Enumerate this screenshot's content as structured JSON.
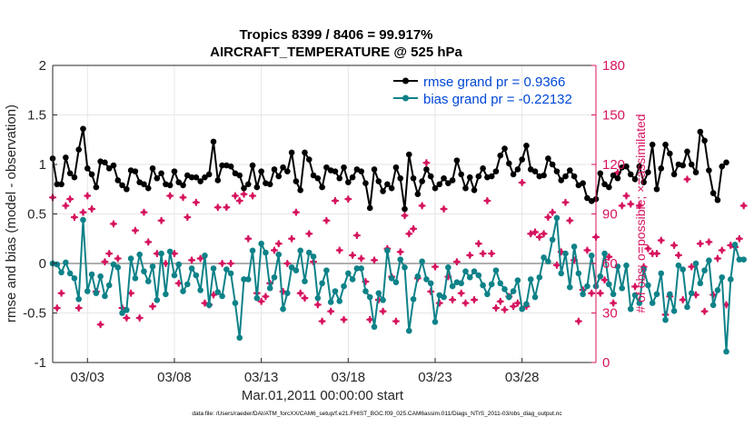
{
  "chart_data": {
    "type": "line",
    "title": "Tropics 8399 / 8406 = 99.917%",
    "subtitle": "AIRCRAFT_TEMPERATURE @ 525 hPa",
    "xlabel": "Mar.01,2011 00:00:00 start",
    "ylabel": "rmse and bias (model - observation)",
    "ylabel_right": "# of obs: o=possible; ×=assimilated",
    "footer": "data file: /Users/raeder/DAI/ATM_forcXX/CAM6_setup/f.e21.FHIST_BGC.f09_025.CAM6assim.011/Diags_NTrS_2011-03/obs_diag_output.nc",
    "xlim": [
      1.0,
      32.25
    ],
    "ylim": [
      -1,
      2
    ],
    "ylim_right": [
      0,
      180
    ],
    "x_ticks": [
      3,
      8,
      13,
      18,
      23,
      28
    ],
    "x_tick_labels": [
      "03/03",
      "03/08",
      "03/13",
      "03/18",
      "03/23",
      "03/28"
    ],
    "y_ticks": [
      -1,
      -0.5,
      0,
      0.5,
      1,
      1.5,
      2
    ],
    "y_tick_labels": [
      "-1",
      "-0.5",
      "0",
      "0.5",
      "1",
      "1.5",
      "2"
    ],
    "y_right_ticks": [
      0,
      30,
      60,
      90,
      120,
      150,
      180
    ],
    "y_right_tick_labels": [
      "0",
      "30",
      "60",
      "90",
      "120",
      "150",
      "180"
    ],
    "x_start": 1.0,
    "x_step": 0.25,
    "series": [
      {
        "name": "rmse grand pr = 0.9366",
        "color": "#000000",
        "axis": "left",
        "values": [
          1.06,
          0.8,
          0.8,
          1.07,
          0.91,
          0.87,
          1.15,
          1.36,
          0.96,
          0.9,
          0.77,
          1.03,
          1.02,
          0.96,
          0.99,
          0.84,
          0.79,
          0.75,
          0.94,
          0.93,
          0.82,
          0.8,
          0.76,
          0.96,
          0.86,
          0.91,
          0.8,
          0.79,
          0.93,
          0.82,
          0.79,
          0.89,
          0.87,
          0.87,
          0.83,
          0.87,
          0.9,
          1.23,
          0.84,
          0.99,
          0.99,
          0.98,
          0.91,
          0.89,
          0.76,
          0.8,
          0.99,
          0.77,
          0.93,
          0.81,
          0.8,
          0.95,
          0.88,
          0.97,
          0.93,
          1.12,
          0.83,
          0.74,
          1.12,
          1.05,
          0.89,
          0.86,
          0.77,
          0.97,
          0.94,
          0.93,
          0.86,
          0.97,
          0.82,
          0.87,
          0.95,
          0.93,
          0.81,
          0.56,
          0.95,
          0.83,
          0.73,
          0.8,
          0.76,
          0.97,
          0.86,
          0.55,
          1.1,
          0.86,
          0.7,
          0.83,
          0.95,
          0.88,
          0.76,
          0.8,
          0.86,
          0.81,
          0.84,
          1.04,
          0.9,
          0.76,
          0.87,
          0.74,
          0.88,
          0.96,
          0.87,
          0.88,
          0.93,
          1.09,
          1.16,
          1.01,
          0.9,
          0.95,
          1.05,
          1.19,
          0.95,
          0.93,
          0.88,
          0.89,
          1.06,
          1.0,
          0.93,
          0.84,
          0.88,
          0.94,
          0.88,
          0.79,
          0.81,
          0.66,
          0.63,
          0.65,
          0.91,
          0.8,
          0.77,
          0.89,
          0.86,
          0.97,
          0.98,
          0.9,
          0.85,
          0.98,
          0.82,
          0.92,
          1.2,
          0.75,
          0.96,
          1.2,
          1.11,
          0.9,
          1.0,
          0.99,
          1.13,
          1.0,
          0.92,
          1.33,
          1.24,
          0.94,
          0.71,
          0.64,
          0.98,
          1.02
        ]
      },
      {
        "name": "bias grand pr = -0.22132",
        "color": "#0e8288",
        "axis": "left",
        "values": [
          0.0,
          -0.01,
          -0.09,
          0.01,
          -0.1,
          -0.15,
          -0.36,
          0.44,
          -0.28,
          -0.11,
          -0.3,
          -0.13,
          -0.33,
          -0.22,
          -0.01,
          -0.04,
          -0.5,
          -0.47,
          0.05,
          -0.15,
          0.09,
          -0.08,
          -0.18,
          -0.03,
          -0.37,
          0.1,
          -0.31,
          0.12,
          -0.12,
          -0.01,
          -0.28,
          -0.21,
          -0.05,
          -0.12,
          -0.27,
          0.08,
          -0.42,
          -0.05,
          -0.29,
          -0.33,
          -0.06,
          -0.1,
          -0.4,
          -0.75,
          -0.16,
          -0.16,
          0.13,
          -0.35,
          0.2,
          0.11,
          -0.25,
          -0.14,
          0.09,
          -0.46,
          -0.3,
          -0.04,
          -0.07,
          0.13,
          -0.18,
          0.11,
          0.07,
          -0.35,
          -0.2,
          -0.07,
          -0.39,
          -0.28,
          -0.38,
          -0.23,
          -0.1,
          -0.16,
          -0.05,
          -0.05,
          -0.28,
          -0.34,
          -0.64,
          -0.3,
          -0.37,
          0.13,
          -0.15,
          -0.19,
          0.04,
          -0.04,
          -0.68,
          -0.36,
          -0.13,
          0.02,
          -0.16,
          -0.2,
          -0.59,
          -0.32,
          -0.34,
          -0.04,
          -0.23,
          -0.19,
          -0.2,
          -0.08,
          -0.14,
          -0.08,
          -0.12,
          -0.22,
          -0.31,
          -0.21,
          -0.07,
          -0.2,
          -0.26,
          -0.34,
          -0.28,
          -0.17,
          -0.46,
          -0.41,
          -0.16,
          -0.34,
          -0.14,
          0.06,
          0.02,
          0.24,
          0.46,
          -0.1,
          0.1,
          -0.24,
          0.17,
          -0.1,
          -0.31,
          -0.23,
          0.08,
          -0.23,
          -0.13,
          0.1,
          -0.21,
          -0.31,
          -0.03,
          -0.25,
          -0.02,
          -0.46,
          -0.32,
          -0.4,
          -0.06,
          -0.22,
          -0.4,
          -0.31,
          -0.1,
          -0.57,
          -0.31,
          -0.48,
          -0.02,
          -0.06,
          -0.44,
          -0.3,
          0.0,
          -0.2,
          -0.07,
          0.03,
          -0.42,
          -0.27,
          -0.14,
          -0.89,
          -0.16,
          0.19,
          0.04,
          0.04
        ]
      },
      {
        "name": "observations possible/assimilated",
        "color": "#d6145f",
        "axis": "right",
        "marker": "star",
        "values": [
          100,
          33,
          42,
          95,
          99,
          88,
          33,
          91,
          101,
          93,
          43,
          23,
          61,
          66,
          84,
          63,
          33,
          27,
          42,
          80,
          27,
          91,
          73,
          34,
          66,
          86,
          60,
          101,
          66,
          48,
          100,
          88,
          62,
          97,
          63,
          36,
          35,
          41,
          94,
          60,
          94,
          60,
          101,
          98,
          102,
          75,
          101,
          42,
          37,
          40,
          48,
          68,
          72,
          43,
          60,
          75,
          91,
          42,
          39,
          78,
          61,
          35,
          25,
          86,
          31,
          98,
          68,
          26,
          99,
          65,
          77,
          63,
          49,
          26,
          62,
          38,
          31,
          69,
          52,
          25,
          67,
          89,
          78,
          81,
          51,
          95,
          121,
          43,
          58,
          36,
          93,
          52,
          38,
          61,
          42,
          36,
          65,
          38,
          72,
          66,
          98,
          66,
          33,
          37,
          32,
          40,
          34,
          36,
          109,
          34,
          78,
          79,
          76,
          78,
          88,
          91,
          59,
          67,
          97,
          86,
          62,
          25,
          44,
          68,
          42,
          76,
          42,
          50,
          64,
          36,
          115,
          95,
          101,
          96,
          46,
          95,
          58,
          69,
          66,
          66,
          74,
          29,
          40,
          71,
          65,
          38,
          111,
          58,
          41,
          72,
          31,
          73,
          41,
          63,
          68,
          35,
          71,
          70,
          75,
          95
        ]
      }
    ]
  }
}
